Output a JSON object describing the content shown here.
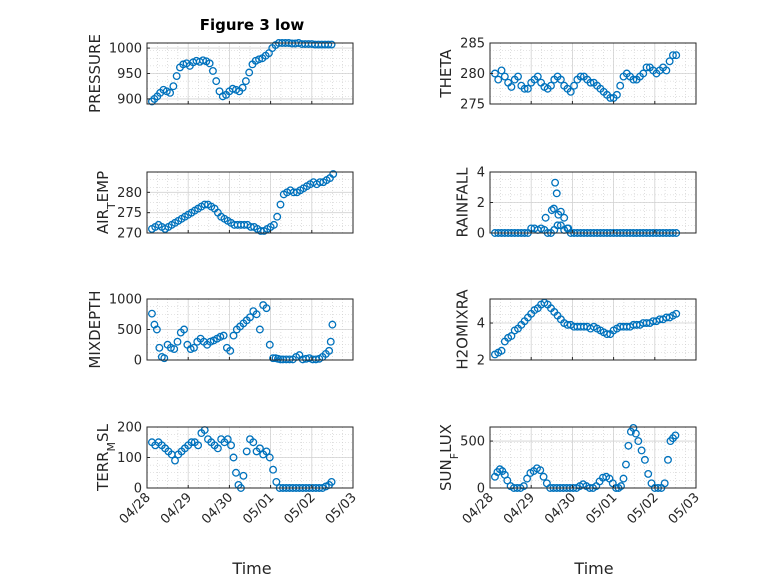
{
  "figure": {
    "title": "Figure 3 low",
    "xlabel": "Time",
    "x_tick_labels": [
      "04/28",
      "04/29",
      "04/30",
      "05/01",
      "05/02",
      "05/03"
    ],
    "marker_color": "#0072BD"
  },
  "chart_data": [
    {
      "type": "scatter",
      "name": "pressure",
      "ylabel": "PRESSURE",
      "xlim": [
        0,
        5
      ],
      "ylim": [
        890,
        1010
      ],
      "yticks": [
        900,
        950,
        1000
      ],
      "x": [
        0.12,
        0.18,
        0.25,
        0.32,
        0.4,
        0.48,
        0.56,
        0.64,
        0.72,
        0.8,
        0.88,
        0.96,
        1.04,
        1.12,
        1.2,
        1.28,
        1.36,
        1.44,
        1.52,
        1.6,
        1.68,
        1.76,
        1.84,
        1.92,
        2.0,
        2.08,
        2.16,
        2.24,
        2.32,
        2.4,
        2.48,
        2.56,
        2.64,
        2.72,
        2.8,
        2.88,
        2.96,
        3.04,
        3.12,
        3.2,
        3.28,
        3.36,
        3.44,
        3.52,
        3.6,
        3.68,
        3.76,
        3.84,
        3.92,
        4.0,
        4.08,
        4.16,
        4.24,
        4.32,
        4.4,
        4.48
      ],
      "y": [
        895,
        900,
        905,
        912,
        918,
        915,
        912,
        925,
        945,
        962,
        968,
        970,
        965,
        972,
        975,
        973,
        976,
        974,
        970,
        955,
        935,
        915,
        905,
        908,
        915,
        920,
        918,
        915,
        922,
        935,
        952,
        968,
        975,
        978,
        980,
        985,
        990,
        1000,
        1006,
        1010,
        1010,
        1010,
        1010,
        1009,
        1009,
        1010,
        1008,
        1008,
        1008,
        1008,
        1007,
        1007,
        1007,
        1007,
        1007,
        1007
      ]
    },
    {
      "type": "scatter",
      "name": "theta",
      "ylabel": "THETA",
      "xlim": [
        0,
        5
      ],
      "ylim": [
        275,
        285
      ],
      "yticks": [
        275,
        280,
        285
      ],
      "x": [
        0.12,
        0.2,
        0.28,
        0.36,
        0.44,
        0.52,
        0.6,
        0.68,
        0.76,
        0.84,
        0.92,
        1.0,
        1.08,
        1.16,
        1.24,
        1.32,
        1.4,
        1.48,
        1.56,
        1.64,
        1.72,
        1.8,
        1.88,
        1.96,
        2.04,
        2.12,
        2.2,
        2.28,
        2.36,
        2.44,
        2.52,
        2.6,
        2.68,
        2.76,
        2.84,
        2.92,
        3.0,
        3.08,
        3.16,
        3.24,
        3.32,
        3.4,
        3.48,
        3.56,
        3.64,
        3.72,
        3.8,
        3.88,
        3.96,
        4.04,
        4.12,
        4.2,
        4.28,
        4.36,
        4.44,
        4.52
      ],
      "y": [
        280,
        279,
        280.5,
        279.5,
        278.5,
        277.8,
        279,
        279.5,
        278,
        277.5,
        277.5,
        278.5,
        279,
        279.5,
        278.5,
        277.8,
        277.5,
        278,
        279,
        279.5,
        279,
        278,
        277.5,
        277,
        278,
        279,
        279.5,
        279.5,
        279,
        278.5,
        278.5,
        278,
        277.5,
        277,
        276.5,
        276,
        276,
        276.5,
        278,
        279.5,
        280,
        279.5,
        279,
        279,
        279.5,
        280,
        281,
        281,
        280.5,
        280,
        280.5,
        281,
        280.5,
        282,
        283,
        283
      ]
    },
    {
      "type": "scatter",
      "name": "air-temp",
      "ylabel": "AIR_TEMP",
      "xlim": [
        0,
        5
      ],
      "ylim": [
        270,
        285
      ],
      "yticks": [
        270,
        275,
        280
      ],
      "x": [
        0.12,
        0.2,
        0.28,
        0.36,
        0.44,
        0.52,
        0.6,
        0.68,
        0.76,
        0.84,
        0.92,
        1.0,
        1.08,
        1.16,
        1.24,
        1.32,
        1.4,
        1.48,
        1.56,
        1.64,
        1.72,
        1.8,
        1.88,
        1.96,
        2.04,
        2.12,
        2.2,
        2.28,
        2.36,
        2.44,
        2.52,
        2.6,
        2.68,
        2.76,
        2.84,
        2.92,
        3.0,
        3.08,
        3.16,
        3.24,
        3.32,
        3.4,
        3.48,
        3.56,
        3.64,
        3.72,
        3.8,
        3.88,
        3.96,
        4.04,
        4.12,
        4.2,
        4.28,
        4.36,
        4.44,
        4.52
      ],
      "y": [
        271,
        271.5,
        272,
        271.5,
        271,
        271.5,
        272,
        272.5,
        273,
        273.5,
        274,
        274.5,
        275,
        275.5,
        276,
        276.5,
        277,
        277,
        276.5,
        276,
        275,
        274,
        273.5,
        273,
        272.5,
        272,
        272,
        272,
        272,
        272,
        271.5,
        271.5,
        271,
        270.5,
        270.5,
        271,
        271.5,
        272,
        274,
        277,
        279.5,
        280,
        280.5,
        280,
        280,
        280.5,
        281,
        281.5,
        282,
        282.5,
        282,
        282.5,
        282.5,
        283,
        283.5,
        284.5
      ]
    },
    {
      "type": "scatter",
      "name": "rainfall",
      "ylabel": "RAINFALL",
      "xlim": [
        0,
        5
      ],
      "ylim": [
        0,
        4
      ],
      "yticks": [
        0,
        2,
        4
      ],
      "x": [
        0.12,
        0.2,
        0.28,
        0.36,
        0.44,
        0.52,
        0.6,
        0.68,
        0.76,
        0.84,
        0.92,
        1.0,
        1.08,
        1.16,
        1.24,
        1.32,
        1.4,
        1.48,
        1.56,
        1.64,
        1.72,
        1.8,
        1.88,
        1.96,
        2.04,
        2.12,
        2.2,
        2.28,
        2.36,
        2.44,
        2.52,
        2.6,
        2.68,
        2.76,
        2.84,
        2.92,
        3.0,
        3.08,
        3.16,
        3.24,
        3.32,
        3.4,
        3.48,
        3.56,
        3.64,
        3.72,
        3.8,
        3.88,
        3.96,
        4.04,
        4.12,
        4.2,
        4.28,
        4.36,
        4.44,
        4.52,
        1.35,
        1.5,
        1.58,
        1.62,
        1.66,
        1.72,
        1.8,
        1.9,
        1.55
      ],
      "y": [
        0,
        0,
        0,
        0,
        0,
        0,
        0,
        0,
        0,
        0,
        0,
        0.3,
        0.3,
        0.2,
        0.3,
        0.2,
        0,
        0,
        0.2,
        0.5,
        1.4,
        1.0,
        0.3,
        0,
        0,
        0,
        0,
        0,
        0,
        0,
        0,
        0,
        0,
        0,
        0,
        0,
        0,
        0,
        0,
        0,
        0,
        0,
        0,
        0,
        0,
        0,
        0,
        0,
        0,
        0,
        0,
        0,
        0,
        0,
        0,
        0,
        1.0,
        1.5,
        3.3,
        2.6,
        1.2,
        0.5,
        0.2,
        0.3,
        1.6
      ]
    },
    {
      "type": "scatter",
      "name": "mixdepth",
      "ylabel": "MIXDEPTH",
      "xlim": [
        0,
        5
      ],
      "ylim": [
        0,
        1000
      ],
      "yticks": [
        0,
        500,
        1000
      ],
      "x": [
        0.12,
        0.18,
        0.24,
        0.3,
        0.36,
        0.42,
        0.5,
        0.58,
        0.66,
        0.74,
        0.82,
        0.9,
        0.98,
        1.06,
        1.14,
        1.22,
        1.3,
        1.38,
        1.46,
        1.54,
        1.62,
        1.7,
        1.78,
        1.86,
        1.94,
        2.02,
        2.1,
        2.18,
        2.26,
        2.34,
        2.42,
        2.5,
        2.58,
        2.66,
        2.74,
        2.82,
        2.9,
        2.98,
        3.06,
        3.12,
        3.18,
        3.24,
        3.3,
        3.38,
        3.46,
        3.54,
        3.62,
        3.7,
        3.78,
        3.86,
        3.94,
        4.02,
        4.1,
        4.18,
        4.26,
        4.34,
        4.42,
        4.46,
        4.5
      ],
      "y": [
        760,
        580,
        500,
        200,
        50,
        30,
        250,
        200,
        180,
        300,
        450,
        500,
        250,
        180,
        200,
        300,
        350,
        300,
        250,
        300,
        320,
        350,
        380,
        400,
        200,
        150,
        400,
        500,
        550,
        600,
        650,
        700,
        800,
        750,
        500,
        900,
        850,
        250,
        30,
        30,
        20,
        10,
        10,
        10,
        10,
        10,
        50,
        80,
        10,
        20,
        30,
        10,
        10,
        20,
        50,
        100,
        150,
        300,
        580
      ]
    },
    {
      "type": "scatter",
      "name": "h2o-mixing-ratio",
      "ylabel": "H2OMIXRA",
      "xlim": [
        0,
        5
      ],
      "ylim": [
        2,
        5.3
      ],
      "yticks": [
        2,
        4
      ],
      "x": [
        0.12,
        0.2,
        0.28,
        0.36,
        0.44,
        0.52,
        0.6,
        0.68,
        0.76,
        0.84,
        0.92,
        1.0,
        1.08,
        1.16,
        1.24,
        1.32,
        1.4,
        1.48,
        1.56,
        1.64,
        1.72,
        1.8,
        1.88,
        1.96,
        2.04,
        2.12,
        2.2,
        2.28,
        2.36,
        2.44,
        2.52,
        2.6,
        2.68,
        2.76,
        2.84,
        2.92,
        3.0,
        3.08,
        3.16,
        3.24,
        3.32,
        3.4,
        3.48,
        3.56,
        3.64,
        3.72,
        3.8,
        3.88,
        3.96,
        4.04,
        4.12,
        4.2,
        4.28,
        4.36,
        4.44,
        4.52
      ],
      "y": [
        2.3,
        2.4,
        2.5,
        3,
        3.2,
        3.3,
        3.6,
        3.7,
        3.9,
        4.1,
        4.3,
        4.5,
        4.7,
        4.8,
        5.0,
        5.1,
        5.0,
        4.8,
        4.6,
        4.4,
        4.2,
        4.0,
        3.9,
        3.9,
        3.8,
        3.8,
        3.8,
        3.8,
        3.8,
        3.7,
        3.8,
        3.7,
        3.6,
        3.5,
        3.4,
        3.4,
        3.6,
        3.7,
        3.8,
        3.8,
        3.8,
        3.8,
        3.9,
        3.9,
        3.9,
        4.0,
        4.0,
        4.0,
        4.1,
        4.1,
        4.2,
        4.2,
        4.3,
        4.3,
        4.4,
        4.5
      ]
    },
    {
      "type": "scatter",
      "name": "terrain-msl",
      "ylabel": "TERR_MSL",
      "xlim": [
        0,
        5
      ],
      "ylim": [
        0,
        200
      ],
      "yticks": [
        0,
        100,
        200
      ],
      "x": [
        0.12,
        0.2,
        0.28,
        0.36,
        0.44,
        0.52,
        0.6,
        0.68,
        0.76,
        0.84,
        0.92,
        1.0,
        1.08,
        1.16,
        1.24,
        1.32,
        1.4,
        1.48,
        1.56,
        1.64,
        1.72,
        1.8,
        1.88,
        1.96,
        2.04,
        2.1,
        2.16,
        2.22,
        2.28,
        2.34,
        2.42,
        2.5,
        2.58,
        2.66,
        2.74,
        2.82,
        2.9,
        2.98,
        3.06,
        3.14,
        3.22,
        3.3,
        3.38,
        3.46,
        3.54,
        3.62,
        3.7,
        3.78,
        3.86,
        3.94,
        4.02,
        4.1,
        4.18,
        4.26,
        4.34,
        4.42,
        4.48
      ],
      "y": [
        150,
        140,
        150,
        140,
        130,
        120,
        110,
        90,
        110,
        120,
        130,
        140,
        150,
        150,
        140,
        180,
        190,
        160,
        150,
        140,
        130,
        160,
        150,
        160,
        140,
        100,
        50,
        10,
        0,
        40,
        120,
        160,
        150,
        120,
        130,
        110,
        120,
        100,
        60,
        20,
        0,
        0,
        0,
        0,
        0,
        0,
        0,
        0,
        0,
        0,
        0,
        0,
        0,
        0,
        5,
        10,
        20
      ]
    },
    {
      "type": "scatter",
      "name": "sun-flux",
      "ylabel": "SUN_FLUX",
      "xlim": [
        0,
        5
      ],
      "ylim": [
        0,
        650
      ],
      "yticks": [
        0,
        500
      ],
      "x": [
        0.12,
        0.18,
        0.24,
        0.3,
        0.36,
        0.42,
        0.5,
        0.58,
        0.66,
        0.74,
        0.82,
        0.9,
        0.98,
        1.06,
        1.14,
        1.22,
        1.3,
        1.38,
        1.46,
        1.54,
        1.62,
        1.7,
        1.78,
        1.86,
        1.94,
        2.02,
        2.1,
        2.18,
        2.26,
        2.34,
        2.42,
        2.5,
        2.58,
        2.66,
        2.74,
        2.82,
        2.9,
        2.98,
        3.06,
        3.12,
        3.18,
        3.24,
        3.3,
        3.36,
        3.42,
        3.48,
        3.54,
        3.6,
        3.68,
        3.76,
        3.84,
        3.92,
        4.0,
        4.08,
        4.16,
        4.24,
        4.32,
        4.38,
        4.44,
        4.5
      ],
      "y": [
        120,
        170,
        200,
        180,
        140,
        80,
        20,
        0,
        0,
        0,
        20,
        100,
        160,
        180,
        210,
        190,
        120,
        50,
        0,
        0,
        0,
        0,
        0,
        0,
        0,
        0,
        0,
        20,
        40,
        20,
        0,
        0,
        20,
        70,
        110,
        120,
        100,
        50,
        0,
        0,
        20,
        100,
        250,
        450,
        600,
        640,
        580,
        500,
        400,
        300,
        150,
        50,
        0,
        0,
        0,
        50,
        300,
        500,
        530,
        560
      ]
    }
  ]
}
